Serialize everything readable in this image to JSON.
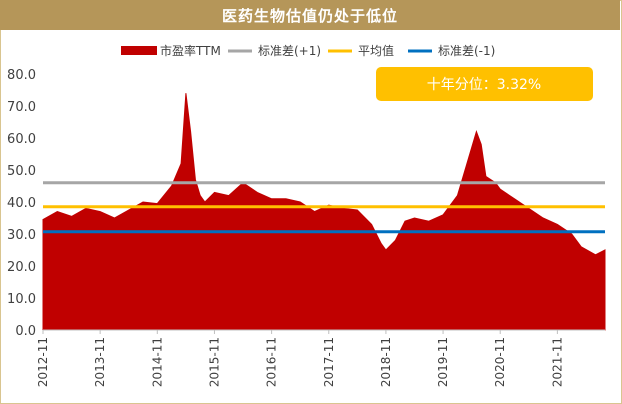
{
  "title": "医药生物估值仍处于低位",
  "colors": {
    "title_bar": "#b59659",
    "pe": "#c00000",
    "std_plus": "#a6a6a6",
    "mean": "#ffc000",
    "std_minus": "#0070c0",
    "callout": "#ffc000"
  },
  "callout": "十年分位：3.32%",
  "chart_data": {
    "type": "area",
    "title": "医药生物估值仍处于低位",
    "xlabel": "",
    "ylabel": "",
    "ylim": [
      0,
      80
    ],
    "y_ticks": [
      "0.0",
      "10.0",
      "20.0",
      "30.0",
      "40.0",
      "50.0",
      "60.0",
      "70.0",
      "80.0"
    ],
    "x_ticks": [
      "2012-11",
      "2013-11",
      "2014-11",
      "2015-11",
      "2016-11",
      "2017-11",
      "2018-11",
      "2019-11",
      "2020-11",
      "2021-11"
    ],
    "grid": false,
    "legend_position": "top",
    "legend": [
      "市盈率TTM",
      "标准差(+1)",
      "平均值",
      "标准差(-1)"
    ],
    "x": [
      "2012-11",
      "2013-02",
      "2013-05",
      "2013-08",
      "2013-11",
      "2014-02",
      "2014-05",
      "2014-08",
      "2014-11",
      "2015-02",
      "2015-04",
      "2015-05",
      "2015-06",
      "2015-07",
      "2015-08",
      "2015-09",
      "2015-11",
      "2016-02",
      "2016-05",
      "2016-08",
      "2016-11",
      "2017-02",
      "2017-05",
      "2017-08",
      "2017-11",
      "2018-02",
      "2018-05",
      "2018-08",
      "2018-10",
      "2018-11",
      "2019-01",
      "2019-03",
      "2019-05",
      "2019-08",
      "2019-11",
      "2020-02",
      "2020-04",
      "2020-06",
      "2020-07",
      "2020-08",
      "2020-10",
      "2020-11",
      "2021-02",
      "2021-05",
      "2021-08",
      "2021-11",
      "2022-02",
      "2022-04",
      "2022-07",
      "2022-09"
    ],
    "series": [
      {
        "name": "市盈率TTM",
        "values": [
          34.5,
          37.0,
          35.5,
          38.0,
          37.0,
          35.0,
          37.5,
          40.0,
          39.5,
          45.0,
          52.0,
          74.0,
          62.0,
          47.0,
          42.0,
          40.0,
          43.0,
          42.0,
          46.0,
          43.0,
          41.0,
          41.0,
          40.0,
          37.0,
          39.0,
          38.0,
          37.5,
          33.0,
          27.0,
          25.0,
          28.0,
          34.0,
          35.0,
          34.0,
          36.0,
          42.0,
          52.0,
          62.0,
          58.0,
          48.0,
          46.0,
          44.0,
          41.0,
          38.0,
          35.0,
          33.0,
          30.0,
          26.0,
          23.5,
          25.0
        ]
      },
      {
        "name": "标准差(+1)",
        "value": 46.0
      },
      {
        "name": "平均值",
        "value": 38.5
      },
      {
        "name": "标准差(-1)",
        "value": 30.7
      }
    ]
  }
}
